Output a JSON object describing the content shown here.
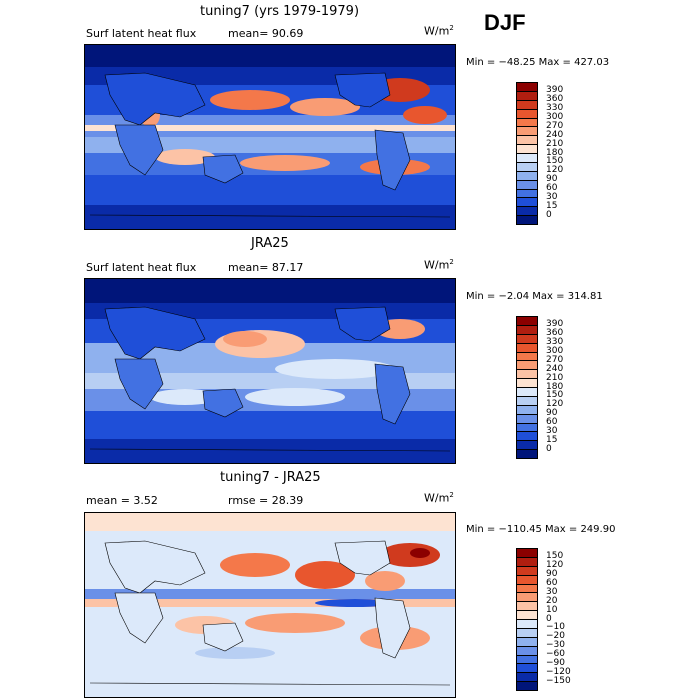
{
  "season": "DJF",
  "panels": [
    {
      "id": "model",
      "title": "tuning7 (yrs 1979-1979)",
      "left_label": "Surf latent heat flux",
      "right_label": "mean=  90.69",
      "unit_base": "W/m",
      "unit_sup": "2",
      "minmax": "Min = −48.25 Max = 427.03",
      "colorbar_levels": [
        "390",
        "360",
        "330",
        "300",
        "270",
        "240",
        "210",
        "180",
        "150",
        "120",
        "90",
        "60",
        "30",
        "15",
        "0"
      ],
      "colorbar_colors": [
        "#8b0000",
        "#b01e10",
        "#d03a1e",
        "#e8562e",
        "#f4784a",
        "#f99c74",
        "#fcc3a6",
        "#fde3d2",
        "#dce9fa",
        "#b8cff3",
        "#8fb1ee",
        "#6a90e8",
        "#4271e2",
        "#1f4fd8",
        "#0a2ba8",
        "#00157a"
      ]
    },
    {
      "id": "obs",
      "title": "JRA25",
      "left_label": "Surf latent heat flux",
      "right_label": "mean=  87.17",
      "unit_base": "W/m",
      "unit_sup": "2",
      "minmax": "Min =  −2.04 Max = 314.81",
      "colorbar_levels": [
        "390",
        "360",
        "330",
        "300",
        "270",
        "240",
        "210",
        "180",
        "150",
        "120",
        "90",
        "60",
        "30",
        "15",
        "0"
      ],
      "colorbar_colors": [
        "#8b0000",
        "#b01e10",
        "#d03a1e",
        "#e8562e",
        "#f4784a",
        "#f99c74",
        "#fcc3a6",
        "#fde3d2",
        "#dce9fa",
        "#b8cff3",
        "#8fb1ee",
        "#6a90e8",
        "#4271e2",
        "#1f4fd8",
        "#0a2ba8",
        "#00157a"
      ]
    },
    {
      "id": "diff",
      "title": "tuning7 - JRA25",
      "left_label": "mean =    3.52",
      "right_label": "rmse =   28.39",
      "unit_base": "W/m",
      "unit_sup": "2",
      "minmax": "Min = −110.45 Max = 249.90",
      "colorbar_levels": [
        "150",
        "120",
        "90",
        "60",
        "30",
        "20",
        "10",
        "0",
        "−10",
        "−20",
        "−30",
        "−60",
        "−90",
        "−120",
        "−150"
      ],
      "colorbar_colors": [
        "#8b0000",
        "#b01e10",
        "#d03a1e",
        "#e8562e",
        "#f4784a",
        "#f99c74",
        "#fcc3a6",
        "#fde3d2",
        "#dce9fa",
        "#b8cff3",
        "#8fb1ee",
        "#6a90e8",
        "#4271e2",
        "#1f4fd8",
        "#0a2ba8",
        "#00157a"
      ]
    }
  ]
}
